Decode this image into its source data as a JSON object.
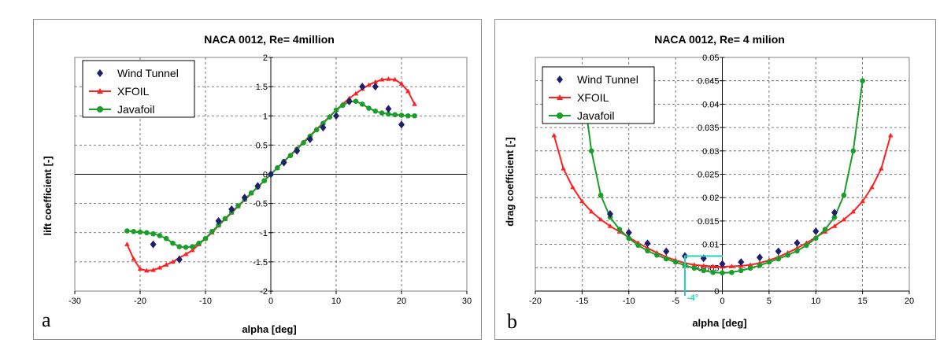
{
  "colors": {
    "wind_tunnel": "#1f1f6e",
    "xfoil": "#ff2020",
    "javafoil": "#1a9e2a",
    "annotation": "#22d3b8",
    "grid": "#555555"
  },
  "chart_data": [
    {
      "type": "line",
      "panel_letter": "a",
      "title": "NACA 0012, Re= 4million",
      "xlabel": "alpha [deg]",
      "ylabel": "lift coefficient [-]",
      "xlim": [
        -30,
        30
      ],
      "ylim": [
        -2,
        2
      ],
      "xticks": [
        "-30",
        "-20",
        "-10",
        "0",
        "10",
        "20",
        "30"
      ],
      "yticks": [
        "-2",
        "-1.5",
        "-1",
        "-0.5",
        "0",
        "0.5",
        "1",
        "1.5",
        "2"
      ],
      "grid": true,
      "legend_position": "top-left",
      "series": [
        {
          "name": "Wind Tunnel",
          "marker": "diamond",
          "x": [
            -18,
            -14,
            -8,
            -6,
            -4,
            -2,
            0,
            2,
            4,
            6,
            8,
            10,
            12,
            14,
            16,
            18,
            20
          ],
          "y": [
            -1.2,
            -1.46,
            -0.8,
            -0.6,
            -0.4,
            -0.2,
            0.0,
            0.2,
            0.4,
            0.6,
            0.8,
            1.0,
            1.25,
            1.5,
            1.5,
            1.12,
            0.85
          ]
        },
        {
          "name": "XFOIL",
          "marker": "triangle",
          "x": [
            -22,
            -21,
            -20,
            -19,
            -18,
            -17,
            -16,
            -15,
            -14,
            -13,
            -12,
            -11,
            -10,
            -9,
            -8,
            -7,
            -6,
            -5,
            -4,
            -3,
            -2,
            -1,
            0,
            1,
            2,
            3,
            4,
            5,
            6,
            7,
            8,
            9,
            10,
            11,
            12,
            13,
            14,
            15,
            16,
            17,
            18,
            19,
            20,
            21,
            22
          ],
          "y": [
            -1.2,
            -1.45,
            -1.62,
            -1.65,
            -1.64,
            -1.6,
            -1.55,
            -1.5,
            -1.43,
            -1.37,
            -1.3,
            -1.2,
            -1.1,
            -1.0,
            -0.88,
            -0.77,
            -0.66,
            -0.55,
            -0.44,
            -0.33,
            -0.22,
            -0.11,
            0.0,
            0.11,
            0.22,
            0.33,
            0.44,
            0.55,
            0.66,
            0.77,
            0.88,
            0.99,
            1.1,
            1.2,
            1.3,
            1.38,
            1.46,
            1.53,
            1.58,
            1.62,
            1.63,
            1.62,
            1.55,
            1.42,
            1.2
          ]
        },
        {
          "name": "Javafoil",
          "marker": "circle",
          "x": [
            -22,
            -21,
            -20,
            -19,
            -18,
            -17,
            -16,
            -15,
            -14,
            -13,
            -12,
            -11,
            -10,
            -9,
            -8,
            -7,
            -6,
            -5,
            -4,
            -3,
            -2,
            -1,
            0,
            1,
            2,
            3,
            4,
            5,
            6,
            7,
            8,
            9,
            10,
            11,
            12,
            13,
            14,
            15,
            16,
            17,
            18,
            19,
            20,
            21,
            22
          ],
          "y": [
            -0.97,
            -0.98,
            -0.99,
            -1.0,
            -1.02,
            -1.05,
            -1.1,
            -1.18,
            -1.24,
            -1.25,
            -1.24,
            -1.18,
            -1.1,
            -0.98,
            -0.87,
            -0.76,
            -0.65,
            -0.54,
            -0.43,
            -0.32,
            -0.22,
            -0.11,
            0.0,
            0.11,
            0.22,
            0.32,
            0.43,
            0.54,
            0.65,
            0.76,
            0.87,
            0.98,
            1.1,
            1.18,
            1.24,
            1.25,
            1.2,
            1.13,
            1.08,
            1.05,
            1.03,
            1.02,
            1.01,
            1.0,
            1.0
          ]
        }
      ]
    },
    {
      "type": "line",
      "panel_letter": "b",
      "title": "NACA 0012, Re= 4 milion",
      "xlabel": "alpha [deg]",
      "ylabel": "drag coefficient [-]",
      "xlim": [
        -20,
        20
      ],
      "ylim": [
        0,
        0.05
      ],
      "xticks": [
        "-20",
        "-15",
        "-10",
        "-5",
        "0",
        "5",
        "10",
        "15",
        "20"
      ],
      "yticks": [
        "0",
        "0.005",
        "0.01",
        "0.015",
        "0.02",
        "0.025",
        "0.03",
        "0.035",
        "0.04",
        "0.045",
        "0.05"
      ],
      "grid": true,
      "legend_position": "top-left",
      "annotation": {
        "label": "-4°",
        "x": -4,
        "y": 0.0075
      },
      "series": [
        {
          "name": "Wind Tunnel",
          "marker": "diamond",
          "x": [
            -12,
            -10,
            -8,
            -6,
            -4,
            -2,
            0,
            2,
            4,
            6,
            8,
            10,
            12
          ],
          "y": [
            0.0165,
            0.0125,
            0.0102,
            0.0085,
            0.0075,
            0.007,
            0.0058,
            0.0062,
            0.0072,
            0.0085,
            0.0103,
            0.0128,
            0.0168
          ]
        },
        {
          "name": "XFOIL",
          "marker": "triangle",
          "x": [
            -18,
            -17,
            -16,
            -15,
            -14,
            -13,
            -12,
            -11,
            -10,
            -9,
            -8,
            -7,
            -6,
            -5,
            -4,
            -3,
            -2,
            -1,
            0,
            1,
            2,
            3,
            4,
            5,
            6,
            7,
            8,
            9,
            10,
            11,
            12,
            13,
            14,
            15,
            16,
            17,
            18
          ],
          "y": [
            0.0333,
            0.0262,
            0.0222,
            0.0192,
            0.017,
            0.0153,
            0.0139,
            0.0127,
            0.0115,
            0.0103,
            0.0092,
            0.0082,
            0.0073,
            0.0066,
            0.006,
            0.0056,
            0.0054,
            0.0053,
            0.0052,
            0.0053,
            0.0054,
            0.0056,
            0.006,
            0.0066,
            0.0073,
            0.0082,
            0.0092,
            0.0103,
            0.0115,
            0.0127,
            0.0139,
            0.0153,
            0.017,
            0.0192,
            0.0222,
            0.0262,
            0.0333
          ]
        },
        {
          "name": "Javafoil",
          "marker": "circle",
          "x": [
            -15,
            -14,
            -13,
            -12,
            -11,
            -10,
            -9,
            -8,
            -7,
            -6,
            -5,
            -4,
            -3,
            -2,
            -1,
            0,
            1,
            2,
            3,
            4,
            5,
            6,
            7,
            8,
            9,
            10,
            11,
            12,
            13,
            14,
            15
          ],
          "y": [
            0.045,
            0.03,
            0.0205,
            0.0158,
            0.0132,
            0.0113,
            0.0098,
            0.0086,
            0.0077,
            0.0069,
            0.0062,
            0.0055,
            0.0049,
            0.0044,
            0.004,
            0.0039,
            0.004,
            0.0044,
            0.0049,
            0.0055,
            0.0062,
            0.0069,
            0.0077,
            0.0086,
            0.0098,
            0.0113,
            0.0132,
            0.0158,
            0.0205,
            0.03,
            0.045
          ]
        }
      ]
    }
  ]
}
